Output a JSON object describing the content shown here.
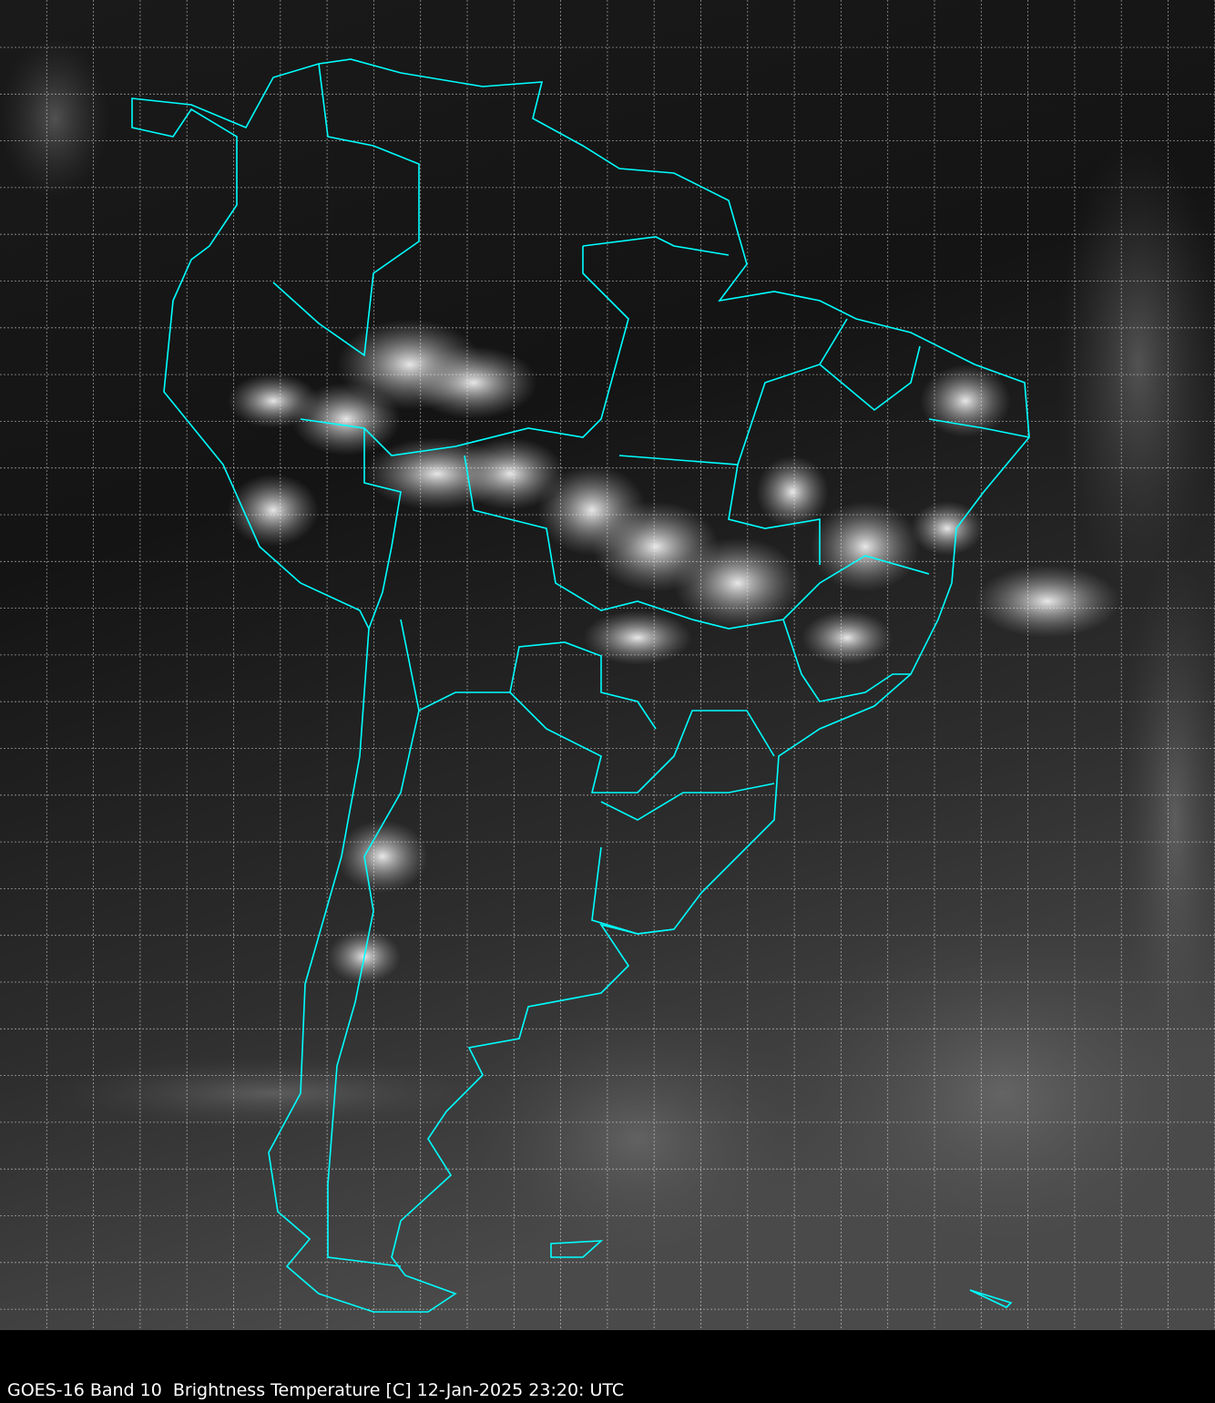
{
  "caption": "GOES-16 Band 10  Brightness Temperature [C] 12-Jan-2025 23:20: UTC",
  "colors": {
    "border": "#00ffff",
    "grid": "#ffffff",
    "background": "#000000"
  }
}
